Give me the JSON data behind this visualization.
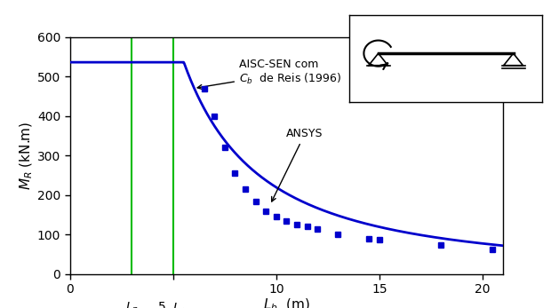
{
  "title": "",
  "xlabel": "$L_b$  (m)",
  "ylabel": "$M_R$ (kN.m)",
  "xlim": [
    0,
    21
  ],
  "ylim": [
    0,
    600
  ],
  "xticks": [
    0,
    5,
    10,
    15,
    20
  ],
  "yticks": [
    0,
    100,
    200,
    300,
    400,
    500,
    600
  ],
  "Lp": 3.0,
  "Lr": 5.0,
  "Mp": 536,
  "line_color": "#0000CC",
  "vline_color": "#00BB00",
  "bg_color": "#ffffff",
  "aisc_label": "AISC-SEN com\n$C_b$  de Reis (1996)",
  "ansys_label": "ANSYS",
  "ansys_points_x": [
    6.5,
    7.0,
    7.5,
    8.0,
    8.5,
    9.0,
    9.5,
    10.0,
    10.5,
    11.0,
    11.5,
    12.0,
    13.0,
    14.5,
    15.0,
    18.0,
    20.5
  ],
  "ansys_points_y": [
    470,
    400,
    320,
    255,
    215,
    183,
    160,
    145,
    135,
    125,
    120,
    115,
    100,
    90,
    88,
    73,
    62
  ],
  "curve_A": 15800,
  "curve_n": 1.72
}
